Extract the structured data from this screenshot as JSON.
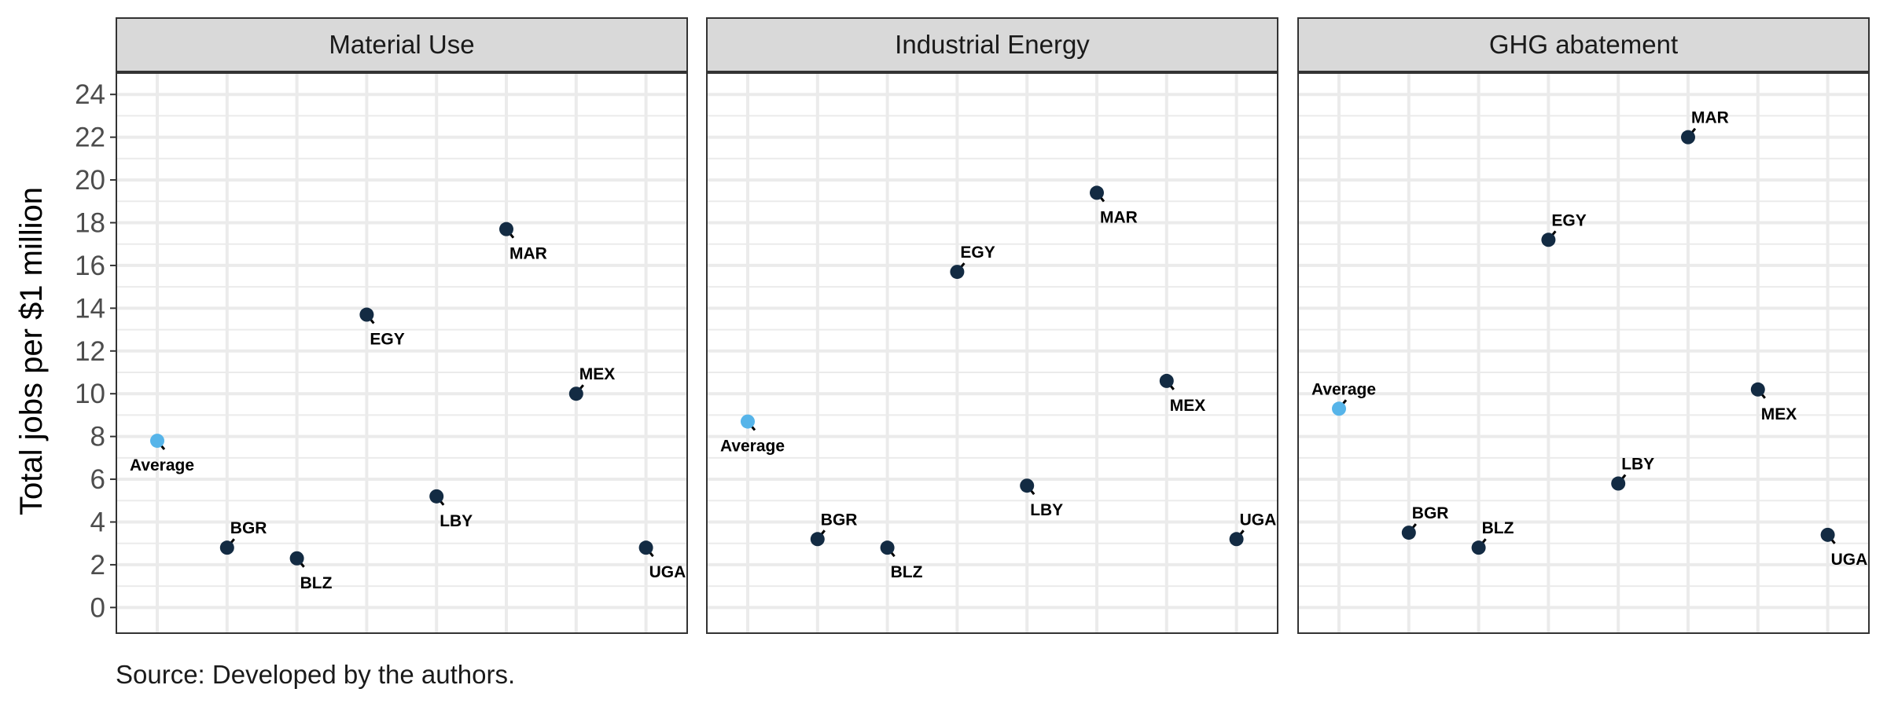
{
  "chart_data": {
    "type": "scatter",
    "ylabel": "Total jobs per $1 million",
    "caption": "Source: Developed by the authors.",
    "ylim": [
      -1.2,
      25
    ],
    "yticks": [
      0,
      2,
      4,
      6,
      8,
      10,
      12,
      14,
      16,
      18,
      20,
      22,
      24
    ],
    "x_order": [
      "Average",
      "BGR",
      "BLZ",
      "EGY",
      "LBY",
      "MAR",
      "MEX",
      "UGA"
    ],
    "colors": {
      "average": "#56b4e9",
      "country": "#132b43",
      "strip_bg": "#d9d9d9",
      "grid": "#ebebeb"
    },
    "panels": [
      {
        "title": "Material Use",
        "points": [
          {
            "label": "Average",
            "y": 7.8,
            "label_pos": "below"
          },
          {
            "label": "BGR",
            "y": 2.8,
            "label_pos": "above"
          },
          {
            "label": "BLZ",
            "y": 2.3,
            "label_pos": "below"
          },
          {
            "label": "EGY",
            "y": 13.7,
            "label_pos": "below"
          },
          {
            "label": "LBY",
            "y": 5.2,
            "label_pos": "below"
          },
          {
            "label": "MAR",
            "y": 17.7,
            "label_pos": "below"
          },
          {
            "label": "MEX",
            "y": 10.0,
            "label_pos": "above"
          },
          {
            "label": "UGA",
            "y": 2.8,
            "label_pos": "below"
          }
        ]
      },
      {
        "title": "Industrial Energy",
        "points": [
          {
            "label": "Average",
            "y": 8.7,
            "label_pos": "below"
          },
          {
            "label": "BGR",
            "y": 3.2,
            "label_pos": "above"
          },
          {
            "label": "BLZ",
            "y": 2.8,
            "label_pos": "below"
          },
          {
            "label": "EGY",
            "y": 15.7,
            "label_pos": "above"
          },
          {
            "label": "LBY",
            "y": 5.7,
            "label_pos": "below"
          },
          {
            "label": "MAR",
            "y": 19.4,
            "label_pos": "below"
          },
          {
            "label": "MEX",
            "y": 10.6,
            "label_pos": "below"
          },
          {
            "label": "UGA",
            "y": 3.2,
            "label_pos": "above"
          }
        ]
      },
      {
        "title": "GHG abatement",
        "points": [
          {
            "label": "Average",
            "y": 9.3,
            "label_pos": "above"
          },
          {
            "label": "BGR",
            "y": 3.5,
            "label_pos": "above"
          },
          {
            "label": "BLZ",
            "y": 2.8,
            "label_pos": "above"
          },
          {
            "label": "EGY",
            "y": 17.2,
            "label_pos": "above"
          },
          {
            "label": "LBY",
            "y": 5.8,
            "label_pos": "above"
          },
          {
            "label": "MAR",
            "y": 22.0,
            "label_pos": "above"
          },
          {
            "label": "MEX",
            "y": 10.2,
            "label_pos": "below"
          },
          {
            "label": "UGA",
            "y": 3.4,
            "label_pos": "below"
          }
        ]
      }
    ]
  }
}
